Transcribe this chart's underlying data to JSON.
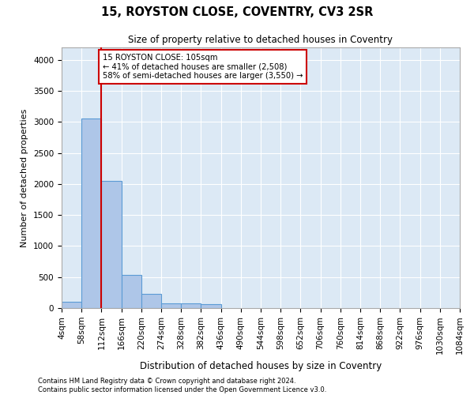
{
  "title": "15, ROYSTON CLOSE, COVENTRY, CV3 2SR",
  "subtitle": "Size of property relative to detached houses in Coventry",
  "xlabel": "Distribution of detached houses by size in Coventry",
  "ylabel": "Number of detached properties",
  "footer_line1": "Contains HM Land Registry data © Crown copyright and database right 2024.",
  "footer_line2": "Contains public sector information licensed under the Open Government Licence v3.0.",
  "property_label": "15 ROYSTON CLOSE: 105sqm",
  "annotation_line1": "← 41% of detached houses are smaller (2,508)",
  "annotation_line2": "58% of semi-detached houses are larger (3,550) →",
  "bins": [
    4,
    58,
    112,
    166,
    220,
    274,
    328,
    382,
    436,
    490,
    544,
    598,
    652,
    706,
    760,
    814,
    868,
    922,
    976,
    1030,
    1084
  ],
  "bar_heights": [
    100,
    3050,
    2050,
    530,
    230,
    80,
    75,
    70,
    0,
    0,
    0,
    0,
    0,
    0,
    0,
    0,
    0,
    0,
    0,
    0
  ],
  "bar_color": "#aec6e8",
  "bar_edge_color": "#5b9bd5",
  "vline_x": 112,
  "vline_color": "#cc0000",
  "annotation_box_color": "#cc0000",
  "background_color": "#dce9f5",
  "ylim": [
    0,
    4200
  ],
  "tick_labels": [
    "4sqm",
    "58sqm",
    "112sqm",
    "166sqm",
    "220sqm",
    "274sqm",
    "328sqm",
    "382sqm",
    "436sqm",
    "490sqm",
    "544sqm",
    "598sqm",
    "652sqm",
    "706sqm",
    "760sqm",
    "814sqm",
    "868sqm",
    "922sqm",
    "976sqm",
    "1030sqm",
    "1084sqm"
  ]
}
